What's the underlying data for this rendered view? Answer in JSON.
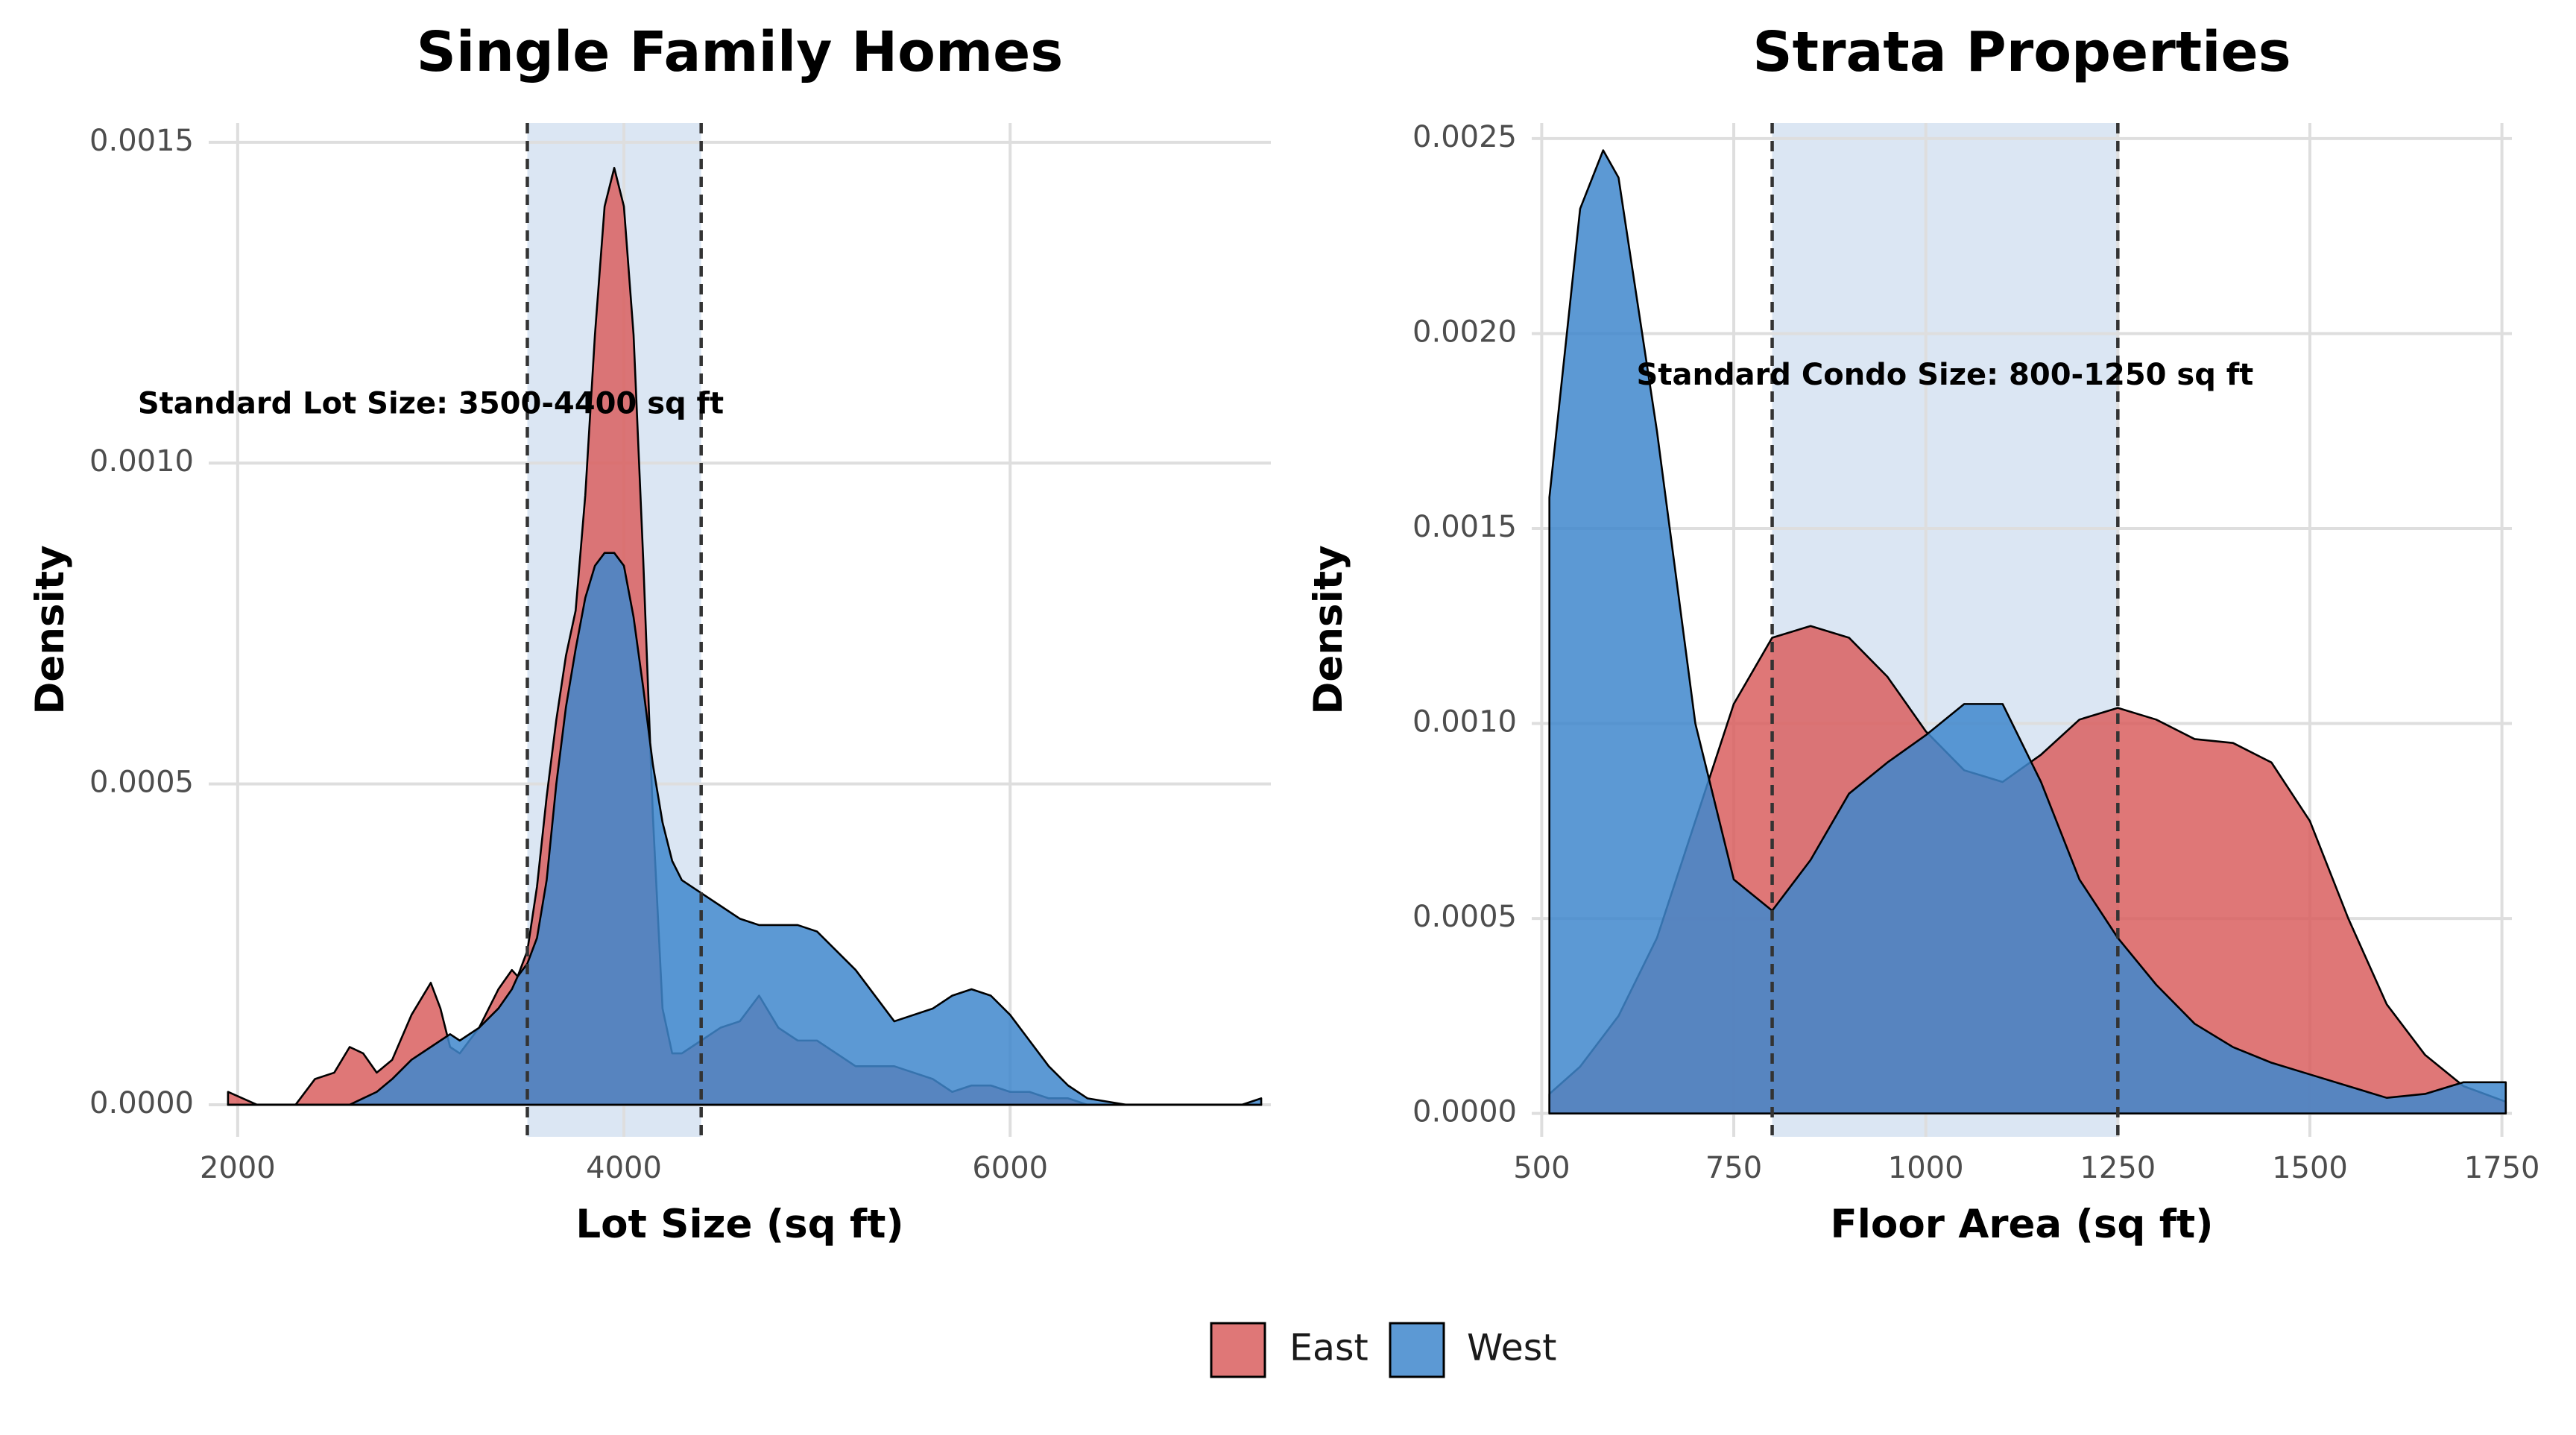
{
  "chart_data": [
    {
      "type": "area",
      "title": "Single Family Homes",
      "xlabel": "Lot Size (sq ft)",
      "ylabel": "Density",
      "xlim": [
        1850,
        7350
      ],
      "ylim": [
        -5e-05,
        0.00153
      ],
      "xticks": [
        2000,
        4000,
        6000
      ],
      "yticks": [
        0,
        0.0005,
        0.001,
        0.0015
      ],
      "ytick_labels": [
        "0.0000",
        "0.0005",
        "0.0010",
        "0.0015"
      ],
      "band": {
        "from": 3500,
        "to": 4400,
        "color": "#dbe6f3"
      },
      "vlines": [
        3500,
        4400
      ],
      "annotation": {
        "text": "Standard Lot Size: 3500-4400 sq ft",
        "x": 3000,
        "y": 0.00109
      },
      "grid": true,
      "series": [
        {
          "name": "East",
          "color": "#d95f5f",
          "x": [
            1950,
            2100,
            2300,
            2400,
            2500,
            2580,
            2650,
            2720,
            2800,
            2900,
            3000,
            3050,
            3100,
            3150,
            3250,
            3350,
            3420,
            3450,
            3500,
            3550,
            3600,
            3650,
            3700,
            3750,
            3800,
            3850,
            3900,
            3950,
            4000,
            4050,
            4100,
            4150,
            4200,
            4250,
            4300,
            4350,
            4400,
            4500,
            4600,
            4700,
            4800,
            4900,
            5000,
            5200,
            5400,
            5600,
            5700,
            5800,
            5900,
            6000,
            6100,
            6200,
            6300,
            6400,
            6600,
            6800,
            7000,
            7200,
            7300
          ],
          "y": [
            2e-05,
            0,
            0,
            4e-05,
            5e-05,
            9e-05,
            8e-05,
            5e-05,
            7e-05,
            0.00014,
            0.00019,
            0.00015,
            9e-05,
            8e-05,
            0.00012,
            0.00018,
            0.00021,
            0.0002,
            0.00024,
            0.00034,
            0.00048,
            0.0006,
            0.0007,
            0.00077,
            0.00095,
            0.0012,
            0.0014,
            0.00146,
            0.0014,
            0.0012,
            0.00085,
            0.00045,
            0.00015,
            8e-05,
            8e-05,
            9e-05,
            0.0001,
            0.00012,
            0.00013,
            0.00017,
            0.00012,
            0.0001,
            0.0001,
            6e-05,
            6e-05,
            4e-05,
            2e-05,
            3e-05,
            3e-05,
            2e-05,
            2e-05,
            1e-05,
            1e-05,
            0,
            0,
            0,
            0,
            0,
            0
          ]
        },
        {
          "name": "West",
          "color": "#3f87cc",
          "x": [
            1950,
            2100,
            2300,
            2400,
            2500,
            2580,
            2650,
            2720,
            2800,
            2900,
            3000,
            3050,
            3100,
            3150,
            3250,
            3350,
            3420,
            3450,
            3500,
            3550,
            3600,
            3650,
            3700,
            3750,
            3800,
            3850,
            3900,
            3950,
            4000,
            4050,
            4100,
            4150,
            4200,
            4250,
            4300,
            4350,
            4400,
            4500,
            4600,
            4700,
            4800,
            4900,
            5000,
            5200,
            5400,
            5600,
            5700,
            5800,
            5900,
            6000,
            6100,
            6200,
            6300,
            6400,
            6600,
            6800,
            7000,
            7200,
            7300
          ],
          "y": [
            0,
            0,
            0,
            0,
            0,
            0,
            1e-05,
            2e-05,
            4e-05,
            7e-05,
            9e-05,
            0.0001,
            0.00011,
            0.0001,
            0.00012,
            0.00015,
            0.00018,
            0.0002,
            0.00022,
            0.00026,
            0.00035,
            0.0005,
            0.00062,
            0.00071,
            0.00079,
            0.00084,
            0.00086,
            0.00086,
            0.00084,
            0.00076,
            0.00065,
            0.00053,
            0.00044,
            0.00038,
            0.00035,
            0.00034,
            0.00033,
            0.00031,
            0.00029,
            0.00028,
            0.00028,
            0.00028,
            0.00027,
            0.00021,
            0.00013,
            0.00015,
            0.00017,
            0.00018,
            0.00017,
            0.00014,
            0.0001,
            6e-05,
            3e-05,
            1e-05,
            0,
            0,
            0,
            0,
            1e-05
          ]
        }
      ]
    },
    {
      "type": "area",
      "title": "Strata Properties",
      "xlabel": "Floor Area (sq ft)",
      "ylabel": "Density",
      "xlim": [
        487,
        1763
      ],
      "ylim": [
        -6e-05,
        0.00254
      ],
      "xticks": [
        500,
        750,
        1000,
        1250,
        1500,
        1750
      ],
      "yticks": [
        0,
        0.0005,
        0.001,
        0.0015,
        0.002,
        0.0025
      ],
      "ytick_labels": [
        "0.0000",
        "0.0005",
        "0.0010",
        "0.0015",
        "0.0020",
        "0.0025"
      ],
      "band": {
        "from": 800,
        "to": 1250,
        "color": "#dbe6f3"
      },
      "vlines": [
        800,
        1250
      ],
      "annotation": {
        "text": "Standard Condo Size: 800-1250 sq ft",
        "x": 1025,
        "y": 0.00189
      },
      "grid": true,
      "series": [
        {
          "name": "East",
          "color": "#d95f5f",
          "x": [
            510,
            550,
            600,
            650,
            700,
            750,
            800,
            850,
            900,
            950,
            1000,
            1050,
            1100,
            1150,
            1200,
            1250,
            1300,
            1350,
            1400,
            1450,
            1500,
            1550,
            1600,
            1650,
            1700,
            1755
          ],
          "y": [
            5e-05,
            0.00012,
            0.00025,
            0.00045,
            0.00075,
            0.00105,
            0.00122,
            0.00125,
            0.00122,
            0.00112,
            0.00098,
            0.00088,
            0.00085,
            0.00092,
            0.00101,
            0.00104,
            0.00101,
            0.00096,
            0.00095,
            0.0009,
            0.00075,
            0.0005,
            0.00028,
            0.00015,
            7e-05,
            3e-05
          ]
        },
        {
          "name": "West",
          "color": "#3f87cc",
          "x": [
            510,
            550,
            580,
            600,
            650,
            700,
            750,
            800,
            850,
            900,
            950,
            1000,
            1050,
            1100,
            1150,
            1200,
            1250,
            1300,
            1350,
            1400,
            1450,
            1500,
            1550,
            1600,
            1650,
            1700,
            1755
          ],
          "y": [
            0.00158,
            0.00232,
            0.00247,
            0.0024,
            0.00175,
            0.001,
            0.0006,
            0.00052,
            0.00065,
            0.00082,
            0.0009,
            0.00097,
            0.00105,
            0.00105,
            0.00085,
            0.0006,
            0.00045,
            0.00033,
            0.00023,
            0.00017,
            0.00013,
            0.0001,
            7e-05,
            4e-05,
            5e-05,
            8e-05,
            8e-05
          ]
        }
      ]
    }
  ],
  "legend": {
    "items": [
      {
        "name": "East",
        "color": "#d95f5f"
      },
      {
        "name": "West",
        "color": "#3f87cc"
      }
    ]
  }
}
